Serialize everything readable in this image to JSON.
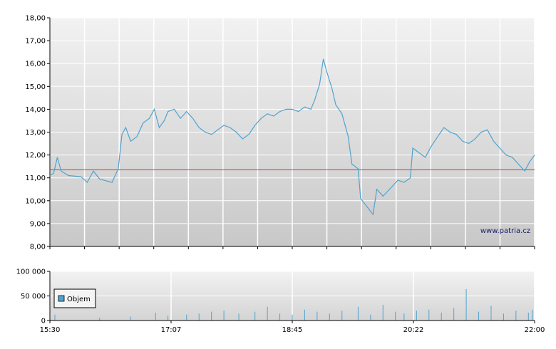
{
  "watermark": "www.patria.cz",
  "colors": {
    "price_line": "#4fa3cf",
    "reference_line": "#e03030",
    "volume_bar": "#4fa3cf",
    "grid": "#ffffff",
    "axis": "#000000"
  },
  "chart_data": [
    {
      "type": "line",
      "title": "",
      "ylim": [
        8,
        18
      ],
      "y_ticks": [
        "8,00",
        "9,00",
        "10,00",
        "11,00",
        "12,00",
        "13,00",
        "14,00",
        "15,00",
        "16,00",
        "17,00",
        "18,00"
      ],
      "x_range": [
        "15:30",
        "22:00"
      ],
      "reference_value": 11.35,
      "series": [
        {
          "points": [
            [
              "15:30",
              11.1
            ],
            [
              "15:33",
              11.2
            ],
            [
              "15:36",
              11.9
            ],
            [
              "15:39",
              11.3
            ],
            [
              "15:45",
              11.1
            ],
            [
              "15:55",
              11.05
            ],
            [
              "16:00",
              10.8
            ],
            [
              "16:05",
              11.3
            ],
            [
              "16:10",
              10.95
            ],
            [
              "16:20",
              10.8
            ],
            [
              "16:25",
              11.4
            ],
            [
              "16:28",
              12.9
            ],
            [
              "16:31",
              13.2
            ],
            [
              "16:35",
              12.6
            ],
            [
              "16:40",
              12.8
            ],
            [
              "16:45",
              13.4
            ],
            [
              "16:50",
              13.6
            ],
            [
              "16:54",
              14.0
            ],
            [
              "16:58",
              13.2
            ],
            [
              "17:02",
              13.5
            ],
            [
              "17:05",
              13.9
            ],
            [
              "17:10",
              14.0
            ],
            [
              "17:15",
              13.6
            ],
            [
              "17:20",
              13.9
            ],
            [
              "17:25",
              13.6
            ],
            [
              "17:30",
              13.2
            ],
            [
              "17:35",
              13.0
            ],
            [
              "17:40",
              12.9
            ],
            [
              "17:45",
              13.1
            ],
            [
              "17:50",
              13.3
            ],
            [
              "17:55",
              13.2
            ],
            [
              "18:00",
              13.0
            ],
            [
              "18:05",
              12.7
            ],
            [
              "18:10",
              12.9
            ],
            [
              "18:15",
              13.3
            ],
            [
              "18:20",
              13.6
            ],
            [
              "18:25",
              13.8
            ],
            [
              "18:30",
              13.7
            ],
            [
              "18:35",
              13.9
            ],
            [
              "18:40",
              14.0
            ],
            [
              "18:45",
              14.0
            ],
            [
              "18:50",
              13.9
            ],
            [
              "18:55",
              14.1
            ],
            [
              "19:00",
              14.0
            ],
            [
              "19:03",
              14.4
            ],
            [
              "19:07",
              15.1
            ],
            [
              "19:10",
              16.2
            ],
            [
              "19:13",
              15.6
            ],
            [
              "19:17",
              14.9
            ],
            [
              "19:20",
              14.2
            ],
            [
              "19:25",
              13.8
            ],
            [
              "19:30",
              12.8
            ],
            [
              "19:33",
              11.6
            ],
            [
              "19:38",
              11.4
            ],
            [
              "19:40",
              10.1
            ],
            [
              "19:50",
              9.4
            ],
            [
              "19:53",
              10.5
            ],
            [
              "19:58",
              10.2
            ],
            [
              "20:05",
              10.6
            ],
            [
              "20:10",
              10.9
            ],
            [
              "20:15",
              10.8
            ],
            [
              "20:20",
              11.0
            ],
            [
              "20:22",
              12.3
            ],
            [
              "20:27",
              12.1
            ],
            [
              "20:32",
              11.9
            ],
            [
              "20:37",
              12.4
            ],
            [
              "20:42",
              12.8
            ],
            [
              "20:47",
              13.2
            ],
            [
              "20:52",
              13.0
            ],
            [
              "20:57",
              12.9
            ],
            [
              "21:02",
              12.6
            ],
            [
              "21:07",
              12.5
            ],
            [
              "21:12",
              12.7
            ],
            [
              "21:17",
              13.0
            ],
            [
              "21:22",
              13.1
            ],
            [
              "21:27",
              12.6
            ],
            [
              "21:32",
              12.3
            ],
            [
              "21:37",
              12.0
            ],
            [
              "21:42",
              11.9
            ],
            [
              "21:47",
              11.6
            ],
            [
              "21:52",
              11.3
            ],
            [
              "21:56",
              11.7
            ],
            [
              "22:00",
              12.0
            ]
          ]
        }
      ]
    },
    {
      "type": "bar",
      "ylim": [
        0,
        100000
      ],
      "y_ticks": [
        "0",
        "50 000",
        "100 000"
      ],
      "x_ticks": [
        "15:30",
        "17:07",
        "18:45",
        "20:22",
        "22:00"
      ],
      "legend": {
        "label": "Objem",
        "placement": "left"
      },
      "series": [
        {
          "name": "Objem",
          "points": [
            [
              "15:34",
              12000
            ],
            [
              "16:10",
              6000
            ],
            [
              "16:35",
              8000
            ],
            [
              "16:55",
              16000
            ],
            [
              "17:05",
              10000
            ],
            [
              "17:20",
              12000
            ],
            [
              "17:30",
              14000
            ],
            [
              "17:40",
              18000
            ],
            [
              "17:50",
              20000
            ],
            [
              "18:02",
              14000
            ],
            [
              "18:15",
              18000
            ],
            [
              "18:25",
              28000
            ],
            [
              "18:35",
              14000
            ],
            [
              "18:45",
              12000
            ],
            [
              "18:55",
              22000
            ],
            [
              "19:05",
              18000
            ],
            [
              "19:15",
              14000
            ],
            [
              "19:25",
              20000
            ],
            [
              "19:38",
              28000
            ],
            [
              "19:48",
              12000
            ],
            [
              "19:58",
              32000
            ],
            [
              "20:08",
              18000
            ],
            [
              "20:15",
              14000
            ],
            [
              "20:25",
              20000
            ],
            [
              "20:35",
              22000
            ],
            [
              "20:45",
              16000
            ],
            [
              "20:55",
              25000
            ],
            [
              "21:05",
              64000
            ],
            [
              "21:15",
              18000
            ],
            [
              "21:25",
              30000
            ],
            [
              "21:35",
              14000
            ],
            [
              "21:45",
              20000
            ],
            [
              "21:55",
              16000
            ],
            [
              "21:58",
              22000
            ]
          ]
        }
      ]
    }
  ]
}
